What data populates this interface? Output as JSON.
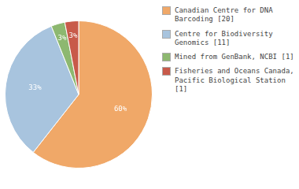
{
  "chart_data": {
    "type": "pie",
    "categories": [
      "Canadian Centre for DNA\nBarcoding [20]",
      "Centre for Biodiversity\nGenomics [11]",
      "Mined from GenBank, NCBI [1]",
      "Fisheries and Oceans Canada,\nPacific Biological Station [1]"
    ],
    "values": [
      60,
      33,
      3,
      3
    ],
    "value_labels": [
      "60%",
      "33%",
      "3%",
      "3%"
    ],
    "colors": [
      "#f0a868",
      "#a8c4de",
      "#8db870",
      "#c85a4a"
    ],
    "data_labels": true,
    "legend": "upper right"
  }
}
